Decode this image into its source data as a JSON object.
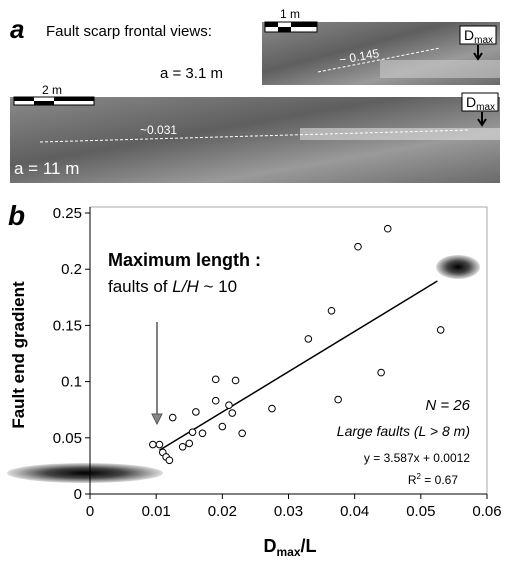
{
  "panel_a": {
    "label": "a",
    "title": "Fault scarp frontal views:",
    "top_view": {
      "a_label": "a = 3.1 m",
      "scale": "1 m",
      "dmax": {
        "main": "D",
        "sub": "max"
      },
      "gradient": "~ 0.145"
    },
    "bottom_view": {
      "a_label": "a = 11 m",
      "scale": "2 m",
      "dmax": {
        "main": "D",
        "sub": "max"
      },
      "gradient": "~0.031"
    }
  },
  "chart_data": {
    "type": "scatter",
    "panel_label": "b",
    "x_label": {
      "main": "D",
      "sub": "max",
      "rest": "/L"
    },
    "y_label": "Fault end gradient",
    "xlim": [
      0,
      0.06
    ],
    "ylim": [
      0,
      0.25
    ],
    "xticks": [
      0,
      0.01,
      0.02,
      0.03,
      0.04,
      0.05,
      0.06
    ],
    "yticks": [
      0,
      0.05,
      0.1,
      0.15,
      0.2,
      0.25
    ],
    "x": [
      0.0095,
      0.0105,
      0.011,
      0.0115,
      0.012,
      0.0125,
      0.014,
      0.015,
      0.0155,
      0.016,
      0.017,
      0.019,
      0.019,
      0.02,
      0.021,
      0.0215,
      0.022,
      0.023,
      0.0275,
      0.033,
      0.0365,
      0.0375,
      0.0405,
      0.044,
      0.045,
      0.053
    ],
    "values": [
      0.044,
      0.044,
      0.037,
      0.033,
      0.03,
      0.068,
      0.042,
      0.045,
      0.055,
      0.073,
      0.054,
      0.083,
      0.102,
      0.06,
      0.079,
      0.072,
      0.101,
      0.054,
      0.076,
      0.138,
      0.163,
      0.084,
      0.22,
      0.108,
      0.236,
      0.146
    ],
    "fit_line": {
      "x": [
        0.0105,
        0.0525
      ],
      "values": [
        0.0389,
        0.1895
      ]
    },
    "annotations": {
      "heading": "Maximum length :",
      "subheading": [
        "faults of ",
        "L/H",
        " ~ 10"
      ],
      "n": "N = 26",
      "large": "Large faults (L > 8 m)",
      "equation": "y = 3.587x + 0.0012",
      "r2": [
        "R",
        "2",
        " = 0.67"
      ]
    }
  }
}
